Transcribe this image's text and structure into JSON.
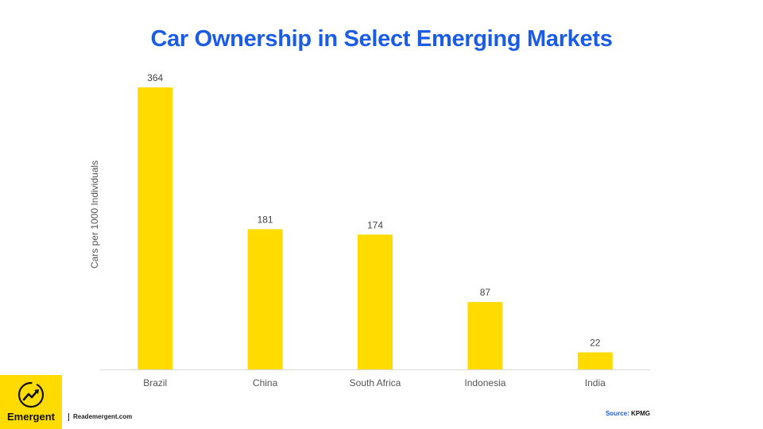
{
  "brand": {
    "name": "Emergent",
    "site": "Reademergent.com",
    "accent_color": "#FFDB00",
    "title_color": "#1A5CE6",
    "logo_icon": "trend-arrow-icon"
  },
  "source": {
    "label": "Source:",
    "value": "KPMG"
  },
  "chart_data": {
    "type": "bar",
    "title": "Car Ownership in Select Emerging Markets",
    "xlabel": "",
    "ylabel": "Cars per 1000 Individuals",
    "categories": [
      "Brazil",
      "China",
      "South Africa",
      "Indonesia",
      "India"
    ],
    "values": [
      364,
      181,
      174,
      87,
      22
    ],
    "data_labels": [
      "364",
      "181",
      "174",
      "87",
      "22"
    ],
    "ylim": [
      0,
      364
    ],
    "bar_color": "#FFDB00",
    "grid": false,
    "legend": "none"
  }
}
